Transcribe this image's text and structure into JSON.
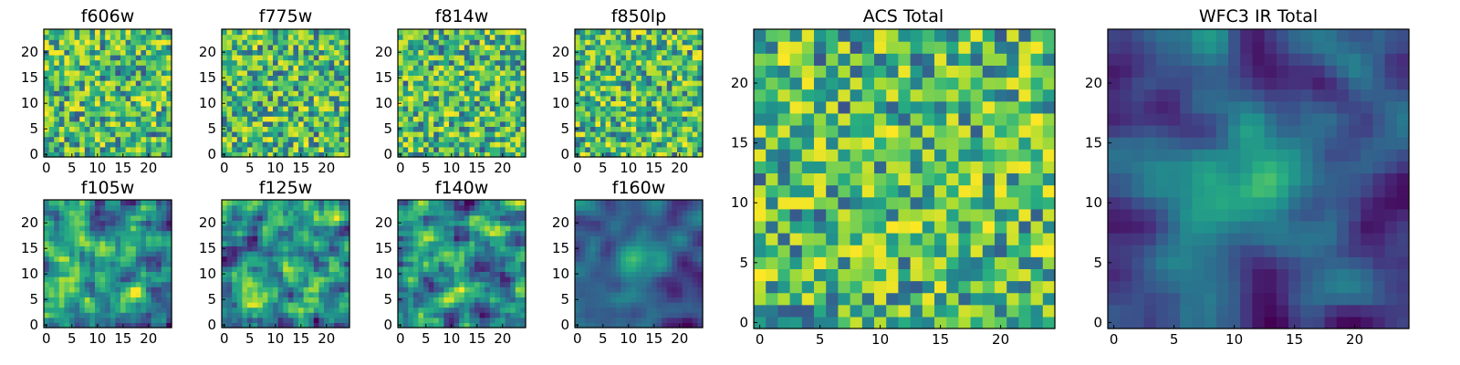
{
  "colors": {
    "colormap": "viridis",
    "low": "#440154",
    "mid": "#21908c",
    "high": "#fde725",
    "background": "#ffffff"
  },
  "chart_data": [
    {
      "type": "heatmap",
      "title": "f606w",
      "xlim": [
        0,
        24
      ],
      "ylim": [
        0,
        24
      ],
      "xticks": [
        0,
        5,
        10,
        15,
        20
      ],
      "yticks": [
        0,
        5,
        10,
        15,
        20
      ],
      "seed": 11,
      "mode": "noise"
    },
    {
      "type": "heatmap",
      "title": "f775w",
      "xlim": [
        0,
        24
      ],
      "ylim": [
        0,
        24
      ],
      "xticks": [
        0,
        5,
        10,
        15,
        20
      ],
      "yticks": [
        0,
        5,
        10,
        15,
        20
      ],
      "seed": 23,
      "mode": "noise"
    },
    {
      "type": "heatmap",
      "title": "f814w",
      "xlim": [
        0,
        24
      ],
      "ylim": [
        0,
        24
      ],
      "xticks": [
        0,
        5,
        10,
        15,
        20
      ],
      "yticks": [
        0,
        5,
        10,
        15,
        20
      ],
      "seed": 37,
      "mode": "noise"
    },
    {
      "type": "heatmap",
      "title": "f850lp",
      "xlim": [
        0,
        24
      ],
      "ylim": [
        0,
        24
      ],
      "xticks": [
        0,
        5,
        10,
        15,
        20
      ],
      "yticks": [
        0,
        5,
        10,
        15,
        20
      ],
      "seed": 41,
      "mode": "noise"
    },
    {
      "type": "heatmap",
      "title": "f105w",
      "xlim": [
        0,
        24
      ],
      "ylim": [
        0,
        24
      ],
      "xticks": [
        0,
        5,
        10,
        15,
        20
      ],
      "yticks": [
        0,
        5,
        10,
        15,
        20
      ],
      "seed": 53,
      "mode": "smooth"
    },
    {
      "type": "heatmap",
      "title": "f125w",
      "xlim": [
        0,
        24
      ],
      "ylim": [
        0,
        24
      ],
      "xticks": [
        0,
        5,
        10,
        15,
        20
      ],
      "yticks": [
        0,
        5,
        10,
        15,
        20
      ],
      "seed": 67,
      "mode": "smooth"
    },
    {
      "type": "heatmap",
      "title": "f140w",
      "xlim": [
        0,
        24
      ],
      "ylim": [
        0,
        24
      ],
      "xticks": [
        0,
        5,
        10,
        15,
        20
      ],
      "yticks": [
        0,
        5,
        10,
        15,
        20
      ],
      "seed": 71,
      "mode": "smooth"
    },
    {
      "type": "heatmap",
      "title": "f160w",
      "xlim": [
        0,
        24
      ],
      "ylim": [
        0,
        24
      ],
      "xticks": [
        0,
        5,
        10,
        15,
        20
      ],
      "yticks": [
        0,
        5,
        10,
        15,
        20
      ],
      "seed": 83,
      "mode": "source"
    },
    {
      "type": "heatmap",
      "title": "ACS Total",
      "xlim": [
        0,
        24
      ],
      "ylim": [
        0,
        24
      ],
      "xticks": [
        0,
        5,
        10,
        15,
        20
      ],
      "yticks": [
        0,
        5,
        10,
        15,
        20
      ],
      "seed": 97,
      "mode": "noise"
    },
    {
      "type": "heatmap",
      "title": "WFC3 IR Total",
      "xlim": [
        0,
        24
      ],
      "ylim": [
        0,
        24
      ],
      "xticks": [
        0,
        5,
        10,
        15,
        20
      ],
      "yticks": [
        0,
        5,
        10,
        15,
        20
      ],
      "seed": 101,
      "mode": "source"
    }
  ]
}
